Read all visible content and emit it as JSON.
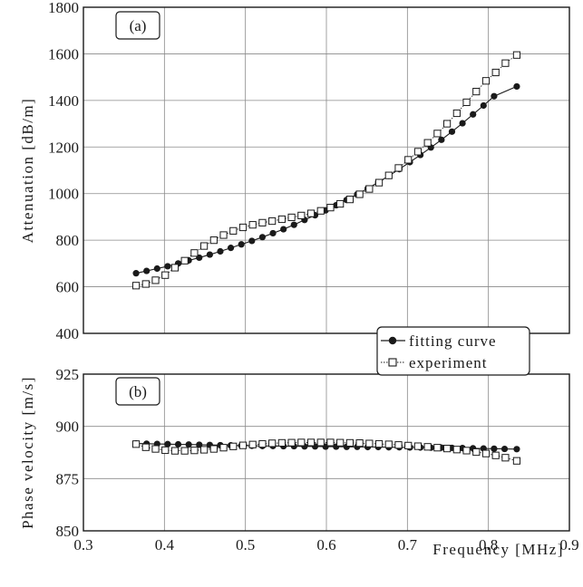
{
  "chart_data": [
    {
      "type": "scatter",
      "panel_label": "(a)",
      "xlabel": "",
      "ylabel": "Attenuation  [dB/m]",
      "xlim": [
        0.3,
        0.9
      ],
      "ylim": [
        400,
        1800
      ],
      "xticks": [
        0.3,
        0.4,
        0.5,
        0.6,
        0.7,
        0.8,
        0.9
      ],
      "yticks": [
        400,
        600,
        800,
        1000,
        1200,
        1400,
        1600,
        1800
      ],
      "grid": true,
      "series": [
        {
          "name": "fitting curve",
          "marker": "filled-circle",
          "x": [
            0.365,
            0.378,
            0.391,
            0.404,
            0.417,
            0.43,
            0.443,
            0.456,
            0.469,
            0.482,
            0.495,
            0.508,
            0.521,
            0.534,
            0.547,
            0.56,
            0.573,
            0.586,
            0.599,
            0.612,
            0.625,
            0.638,
            0.651,
            0.664,
            0.677,
            0.69,
            0.703,
            0.716,
            0.729,
            0.742,
            0.755,
            0.768,
            0.781,
            0.794,
            0.807,
            0.835
          ],
          "y": [
            658,
            668,
            678,
            688,
            700,
            713,
            725,
            738,
            752,
            767,
            782,
            797,
            813,
            830,
            847,
            866,
            887,
            907,
            928,
            950,
            973,
            997,
            1022,
            1049,
            1076,
            1105,
            1135,
            1166,
            1198,
            1231,
            1266,
            1302,
            1340,
            1378,
            1418,
            1460
          ]
        },
        {
          "name": "experiment",
          "marker": "open-square",
          "x": [
            0.365,
            0.377,
            0.389,
            0.401,
            0.413,
            0.425,
            0.437,
            0.449,
            0.461,
            0.473,
            0.485,
            0.497,
            0.509,
            0.521,
            0.533,
            0.545,
            0.557,
            0.569,
            0.581,
            0.593,
            0.605,
            0.617,
            0.629,
            0.641,
            0.653,
            0.665,
            0.677,
            0.689,
            0.701,
            0.713,
            0.725,
            0.737,
            0.749,
            0.761,
            0.773,
            0.785,
            0.797,
            0.809,
            0.821,
            0.835
          ],
          "y": [
            605,
            612,
            628,
            650,
            682,
            712,
            745,
            775,
            800,
            822,
            840,
            855,
            866,
            875,
            882,
            890,
            898,
            906,
            915,
            926,
            940,
            956,
            975,
            997,
            1020,
            1047,
            1078,
            1110,
            1145,
            1180,
            1218,
            1258,
            1300,
            1345,
            1392,
            1438,
            1484,
            1520,
            1560,
            1595
          ]
        }
      ]
    },
    {
      "type": "scatter",
      "panel_label": "(b)",
      "xlabel": "Frequency  [MHz]",
      "ylabel": "Phase  velocity  [m/s]",
      "xlim": [
        0.3,
        0.9
      ],
      "ylim": [
        850,
        925
      ],
      "xticks": [
        0.3,
        0.4,
        0.5,
        0.6,
        0.7,
        0.8,
        0.9
      ],
      "yticks": [
        850,
        875,
        900,
        925
      ],
      "grid": true,
      "series": [
        {
          "name": "fitting curve",
          "marker": "filled-circle",
          "x": [
            0.365,
            0.378,
            0.391,
            0.404,
            0.417,
            0.43,
            0.443,
            0.456,
            0.469,
            0.482,
            0.495,
            0.508,
            0.521,
            0.534,
            0.547,
            0.56,
            0.573,
            0.586,
            0.599,
            0.612,
            0.625,
            0.638,
            0.651,
            0.664,
            0.677,
            0.69,
            0.703,
            0.716,
            0.729,
            0.742,
            0.755,
            0.768,
            0.781,
            0.794,
            0.807,
            0.82,
            0.835
          ],
          "y": [
            891.8,
            891.7,
            891.6,
            891.5,
            891.4,
            891.3,
            891.2,
            891.1,
            891.0,
            890.9,
            890.8,
            890.7,
            890.6,
            890.6,
            890.5,
            890.5,
            890.4,
            890.4,
            890.3,
            890.3,
            890.2,
            890.2,
            890.1,
            890.1,
            890.0,
            890.0,
            889.9,
            889.9,
            889.8,
            889.8,
            889.7,
            889.6,
            889.5,
            889.4,
            889.3,
            889.2,
            889.1
          ]
        },
        {
          "name": "experiment",
          "marker": "open-square",
          "x": [
            0.365,
            0.377,
            0.389,
            0.401,
            0.413,
            0.425,
            0.437,
            0.449,
            0.461,
            0.473,
            0.485,
            0.497,
            0.509,
            0.521,
            0.533,
            0.545,
            0.557,
            0.569,
            0.581,
            0.593,
            0.605,
            0.617,
            0.629,
            0.641,
            0.653,
            0.665,
            0.677,
            0.689,
            0.701,
            0.713,
            0.725,
            0.737,
            0.749,
            0.761,
            0.773,
            0.785,
            0.797,
            0.809,
            0.821,
            0.835
          ],
          "y": [
            891.5,
            890.0,
            889.2,
            888.6,
            888.3,
            888.3,
            888.5,
            888.8,
            889.2,
            889.8,
            890.4,
            890.9,
            891.3,
            891.6,
            891.9,
            892.1,
            892.2,
            892.3,
            892.3,
            892.3,
            892.3,
            892.2,
            892.1,
            892.0,
            891.8,
            891.6,
            891.4,
            891.1,
            890.8,
            890.5,
            890.2,
            889.8,
            889.4,
            888.9,
            888.4,
            887.7,
            887.0,
            886.1,
            885.0,
            883.5
          ]
        }
      ]
    }
  ],
  "legend": {
    "placement": "between-panels-right",
    "items": [
      "fitting curve",
      "experiment"
    ]
  }
}
